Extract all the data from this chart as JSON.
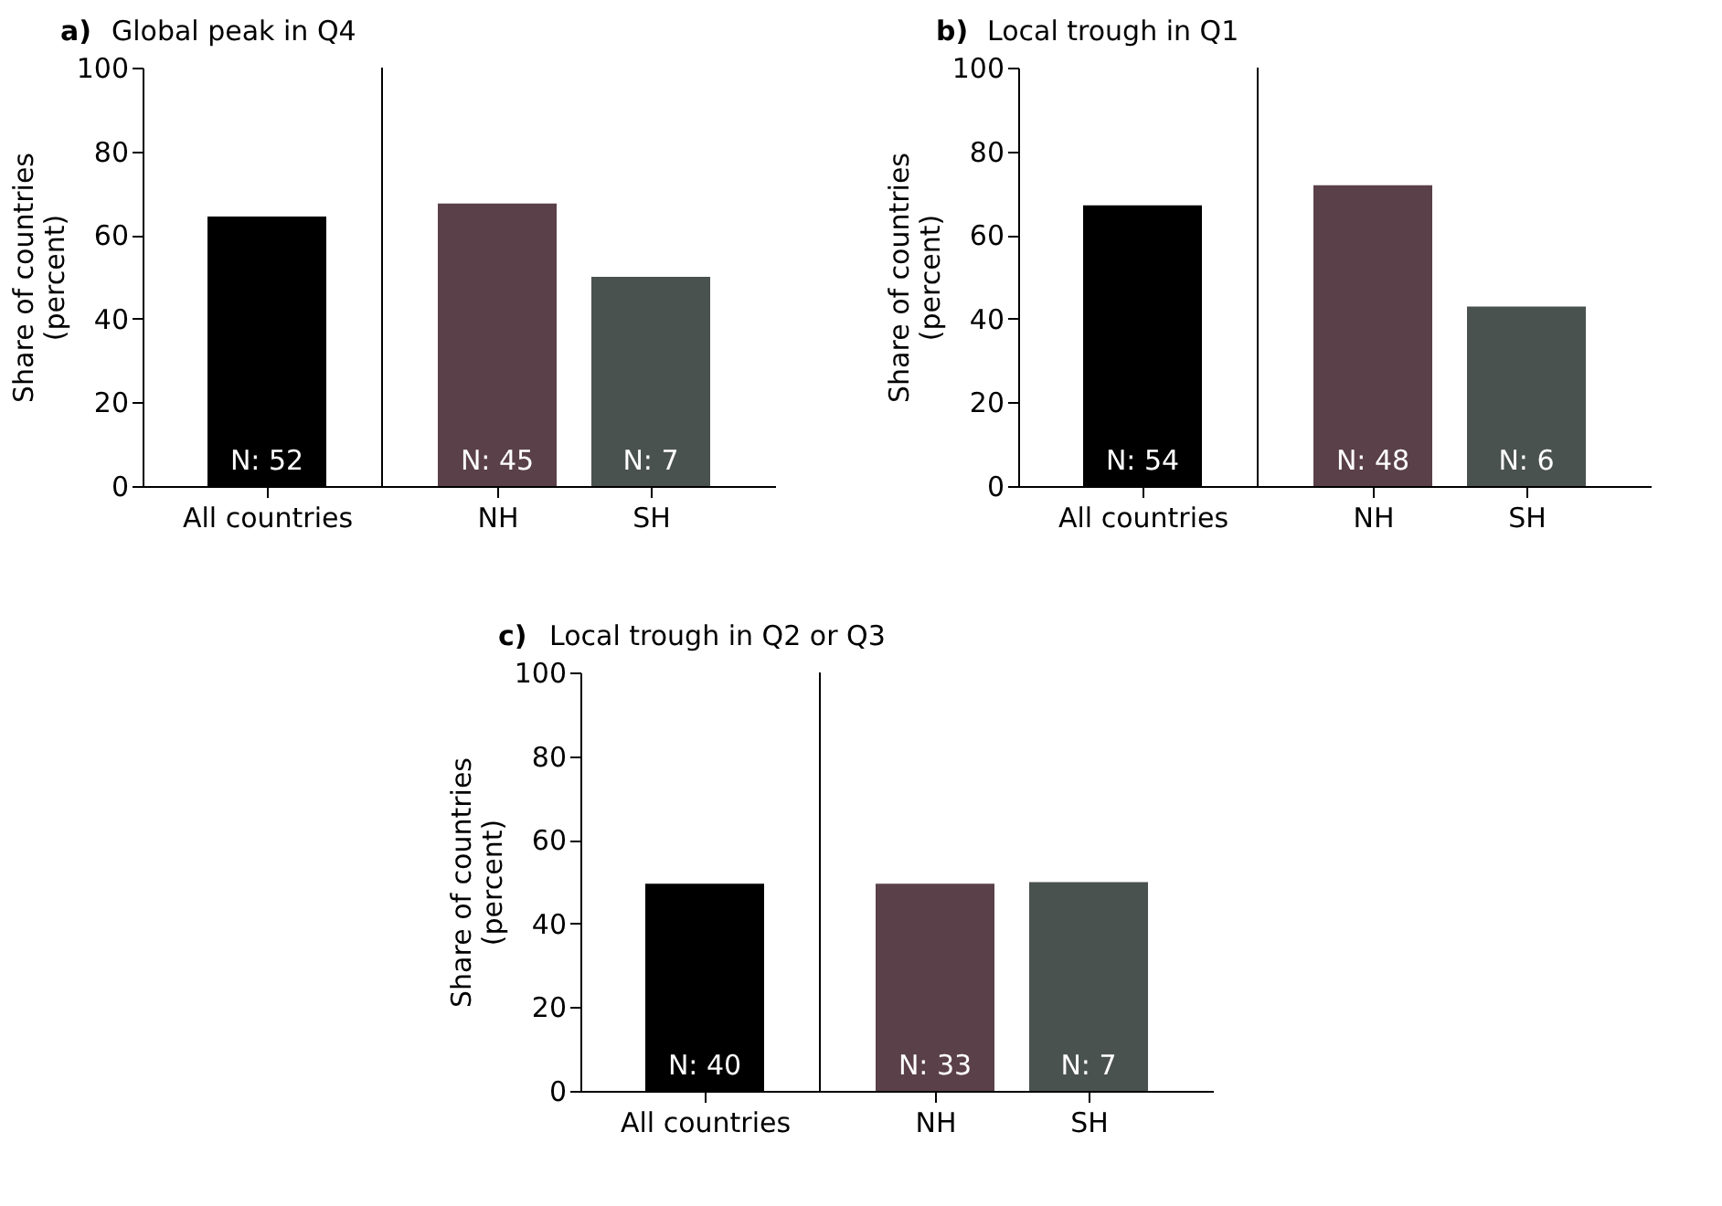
{
  "chart_data": [
    {
      "type": "bar",
      "title": "a) Global peak in Q4",
      "ylabel": "Share of countries\n(percent)",
      "categories": [
        "All countries",
        "NH",
        "SH"
      ],
      "values": [
        64.4,
        67.5,
        50
      ],
      "colors": [
        "#000000",
        "#5a4048",
        "#4a5250"
      ],
      "annotations": [
        "N: 52",
        "N: 45",
        "N: 7"
      ],
      "ylim": [
        0,
        100
      ],
      "yticks": [
        0,
        20,
        40,
        60,
        80,
        100
      ],
      "grid": false
    },
    {
      "type": "bar",
      "title": "b) Local trough in Q1",
      "ylabel": "Share of countries\n(percent)",
      "categories": [
        "All countries",
        "NH",
        "SH"
      ],
      "values": [
        67.1,
        71.9,
        42.9
      ],
      "colors": [
        "#000000",
        "#5a4048",
        "#4a5250"
      ],
      "annotations": [
        "N: 54",
        "N: 48",
        "N: 6"
      ],
      "ylim": [
        0,
        100
      ],
      "yticks": [
        0,
        20,
        40,
        60,
        80,
        100
      ],
      "grid": false
    },
    {
      "type": "bar",
      "title": "c) Local trough in Q2 or Q3",
      "ylabel": "Share of countries\n(percent)",
      "categories": [
        "All countries",
        "NH",
        "SH"
      ],
      "values": [
        49.5,
        49.5,
        49.9
      ],
      "colors": [
        "#000000",
        "#5a4048",
        "#4a5250"
      ],
      "annotations": [
        "N: 40",
        "N: 33",
        "N: 7"
      ],
      "ylim": [
        0,
        100
      ],
      "yticks": [
        0,
        20,
        40,
        60,
        80,
        100
      ],
      "grid": false
    }
  ]
}
